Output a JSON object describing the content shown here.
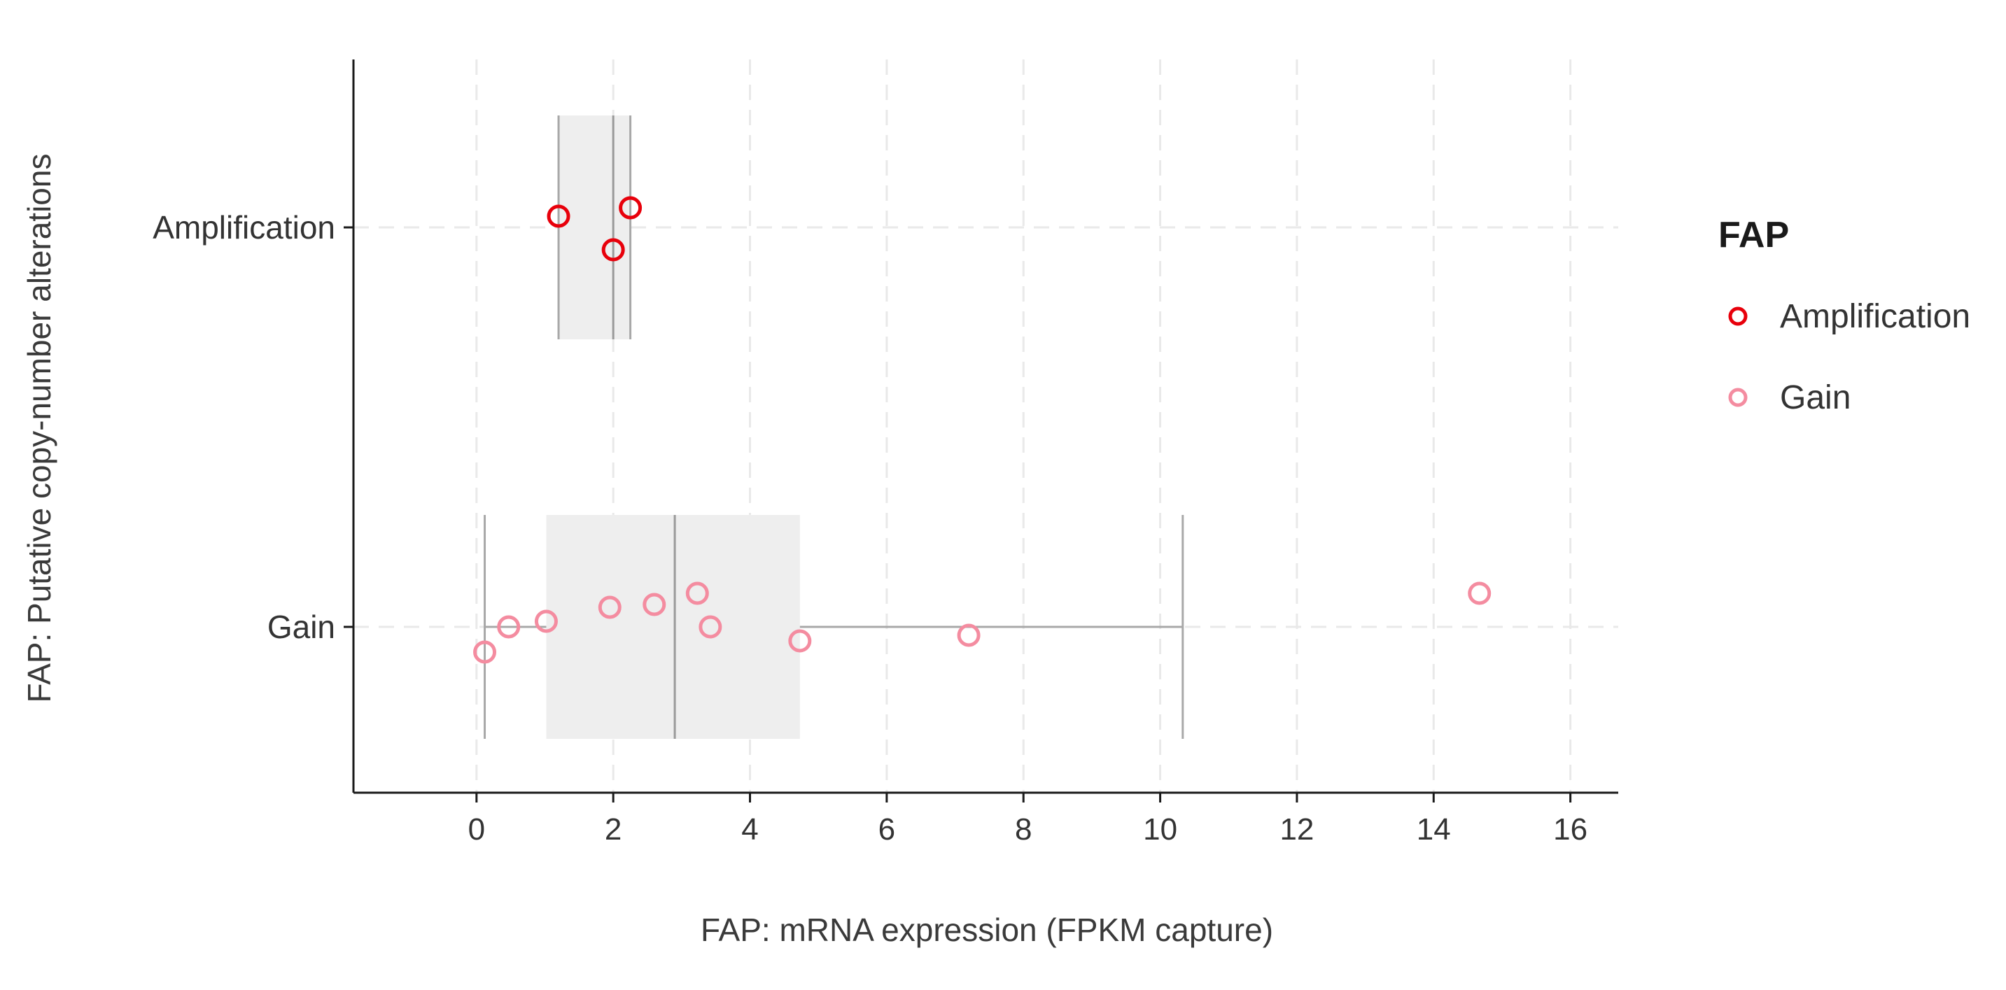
{
  "chart_data": {
    "type": "box",
    "xlabel": "FAP: mRNA expression (FPKM capture)",
    "ylabel": "FAP: Putative copy-number alterations",
    "xlim": [
      -1.8,
      16.7
    ],
    "x_ticks": [
      0,
      2,
      4,
      6,
      8,
      10,
      12,
      14,
      16
    ],
    "categories": [
      "Amplification",
      "Gain"
    ],
    "grid": true,
    "legend": {
      "title": "FAP",
      "position": "right",
      "entries": [
        {
          "label": "Amplification",
          "color": "#e8000b"
        },
        {
          "label": "Gain",
          "color": "#f48ca0"
        }
      ]
    },
    "boxes": [
      {
        "category": "Amplification",
        "min": 1.2,
        "q1": 1.2,
        "median": 2.0,
        "q3": 2.25,
        "max": 2.25
      },
      {
        "category": "Gain",
        "min": 0.12,
        "q1": 1.02,
        "median": 2.9,
        "q3": 4.73,
        "max": 10.33
      }
    ],
    "series": [
      {
        "name": "Amplification",
        "color": "#e8000b",
        "points": [
          {
            "x": 1.2,
            "jitter": 0.04
          },
          {
            "x": 2.25,
            "jitter": 0.07
          },
          {
            "x": 2.0,
            "jitter": -0.08
          }
        ]
      },
      {
        "name": "Gain",
        "color": "#f48ca0",
        "points": [
          {
            "x": 0.12,
            "jitter": -0.09
          },
          {
            "x": 0.47,
            "jitter": 0.0
          },
          {
            "x": 1.02,
            "jitter": 0.02
          },
          {
            "x": 1.95,
            "jitter": 0.07
          },
          {
            "x": 2.6,
            "jitter": 0.08
          },
          {
            "x": 3.23,
            "jitter": 0.12
          },
          {
            "x": 3.42,
            "jitter": 0.0
          },
          {
            "x": 4.73,
            "jitter": -0.05
          },
          {
            "x": 7.2,
            "jitter": -0.03
          },
          {
            "x": 14.67,
            "jitter": 0.12
          }
        ]
      }
    ]
  }
}
